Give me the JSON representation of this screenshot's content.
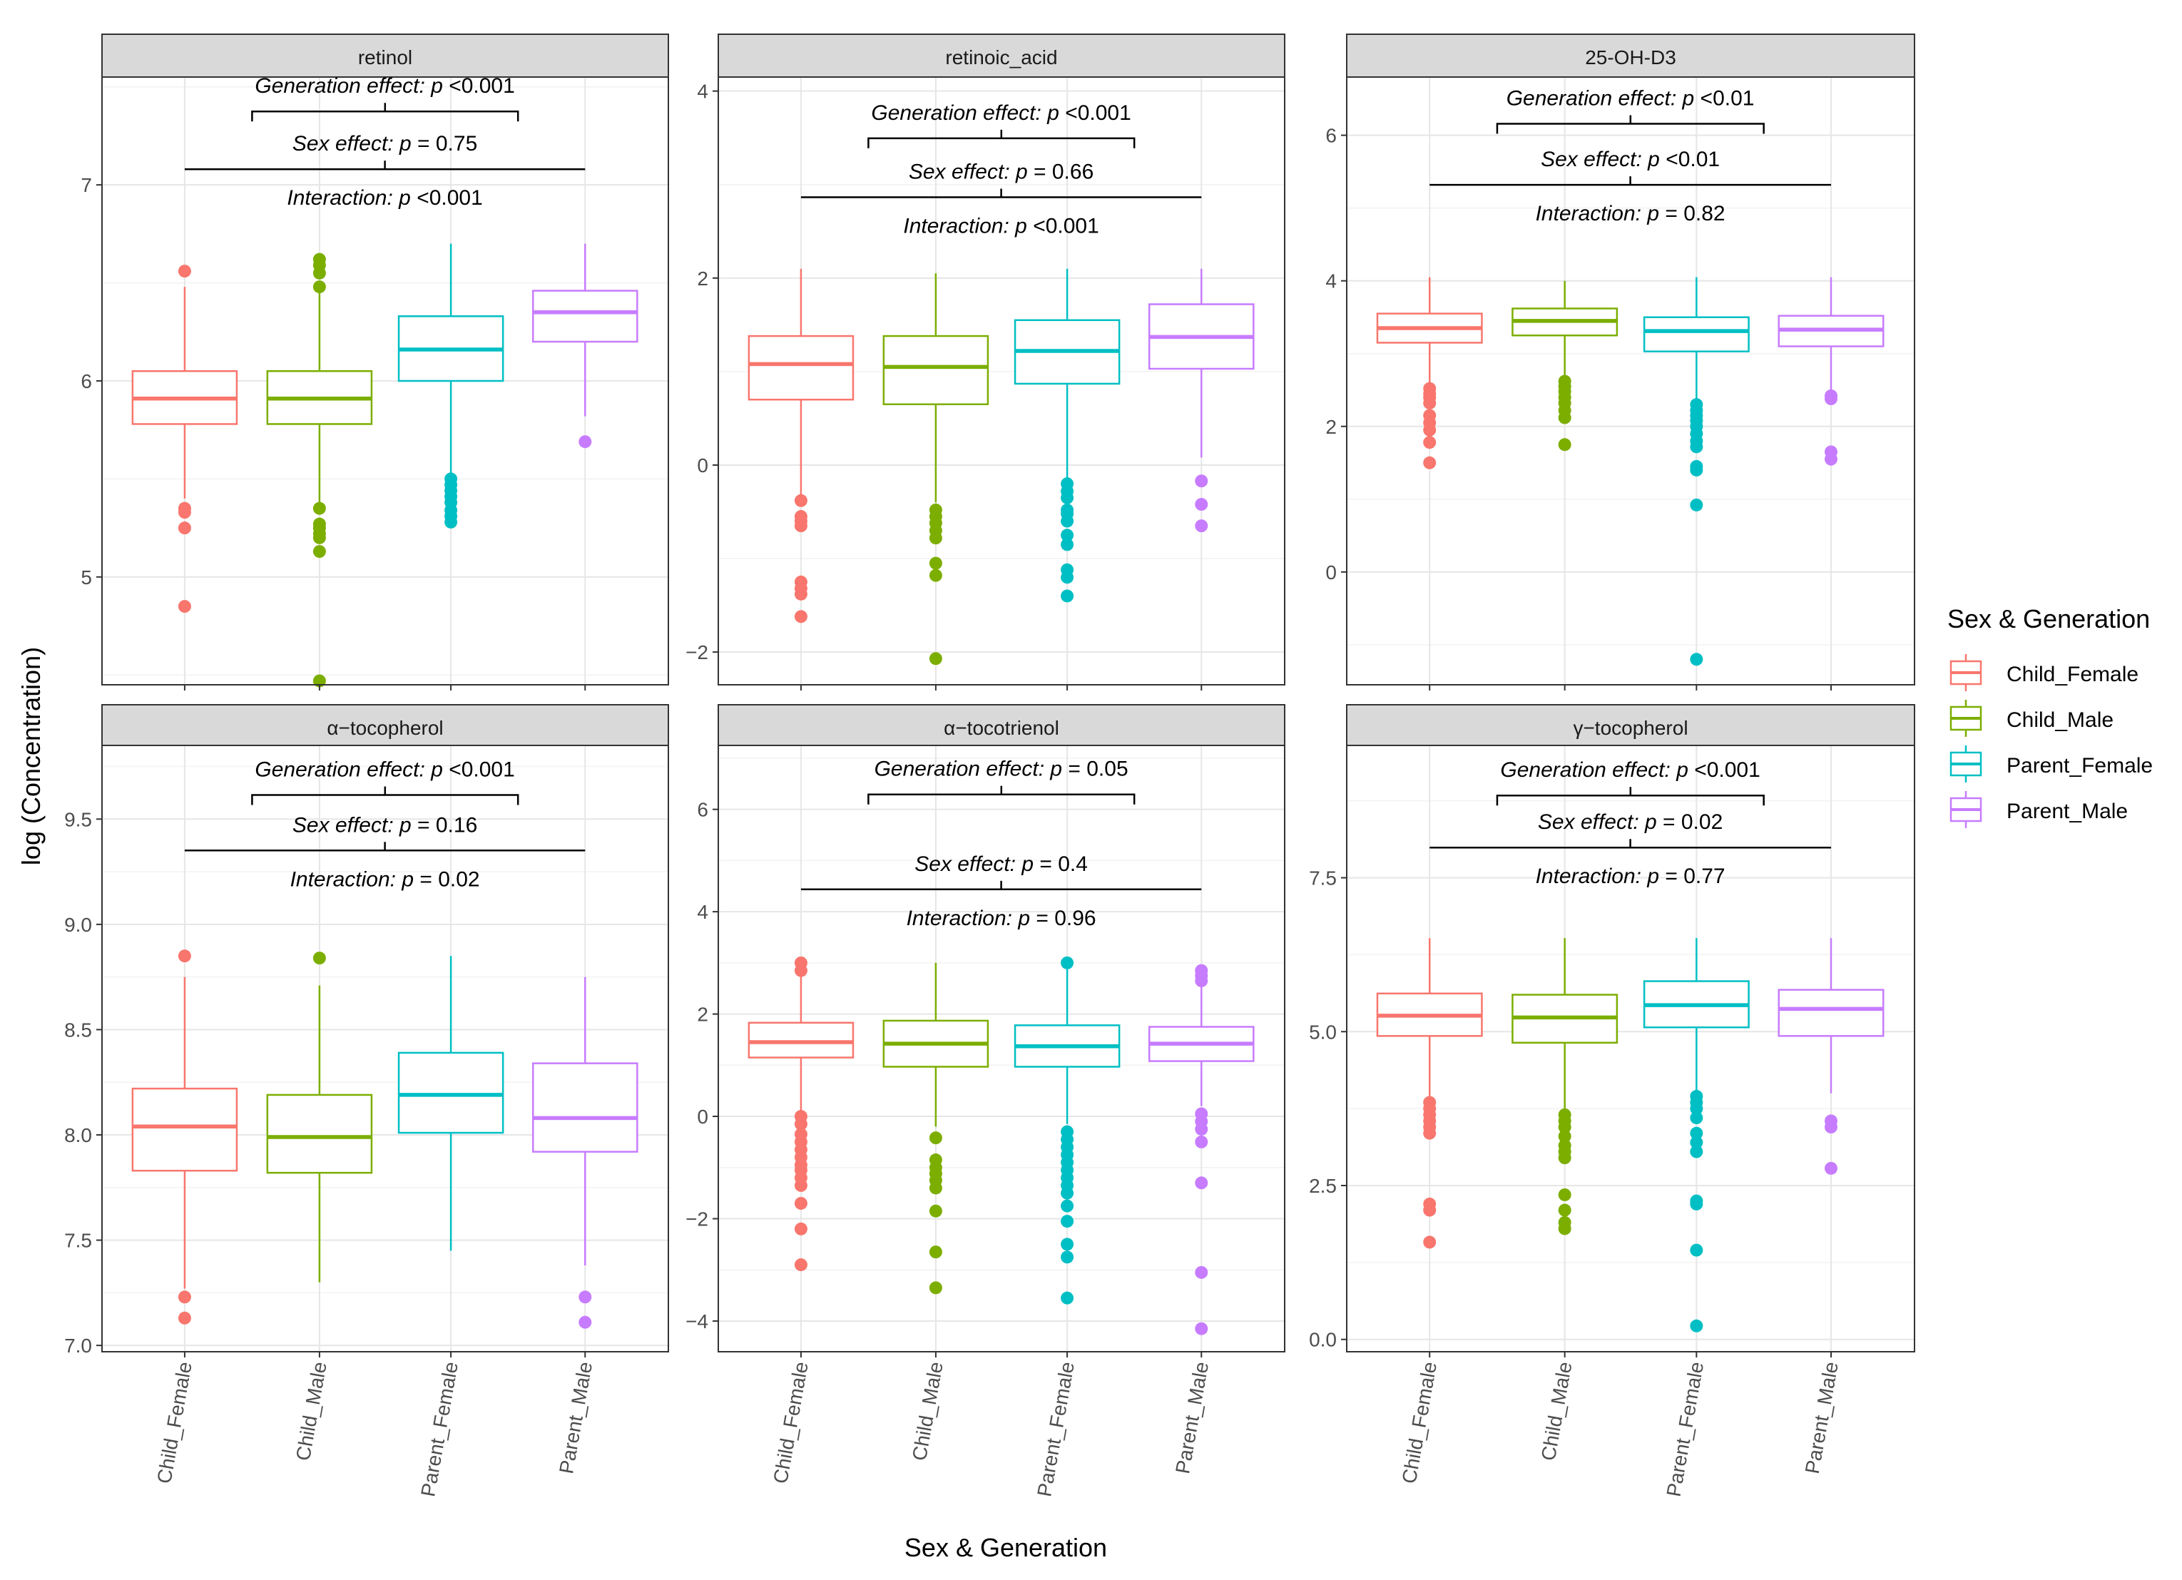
{
  "figure": {
    "ylabel": "log (Concentration)",
    "xlabel": "Sex & Generation",
    "legend_title": "Sex & Generation",
    "legend_position": "right",
    "groups": [
      "Child_Female",
      "Child_Male",
      "Parent_Female",
      "Parent_Male"
    ],
    "colors": {
      "Child_Female": "#F8766D",
      "Child_Male": "#7CAE00",
      "Parent_Female": "#00BFC4",
      "Parent_Male": "#C77CFF"
    },
    "annotation_words": {
      "generation": "Generation effect:",
      "sex": "Sex effect:",
      "interaction": "Interaction:",
      "p": "p"
    }
  },
  "chart_data": [
    {
      "type": "box",
      "title": "retinol",
      "ylim": [
        4.45,
        7.55
      ],
      "yticks": [
        5,
        6,
        7
      ],
      "tick_labels": [
        "5",
        "6",
        "7"
      ],
      "annotations": {
        "generation": " <0.001",
        "sex": " = 0.75",
        "interaction": " <0.001"
      },
      "annot_y": [
        7.52,
        7.24,
        6.92
      ],
      "boxes": [
        {
          "group": "Child_Female",
          "q1": 5.78,
          "median": 5.91,
          "q3": 6.05,
          "wlo": 5.4,
          "whi": 6.48,
          "outliers": [
            6.56,
            5.35,
            5.33,
            5.25,
            4.85
          ]
        },
        {
          "group": "Child_Male",
          "q1": 5.78,
          "median": 5.91,
          "q3": 6.05,
          "wlo": 5.38,
          "whi": 6.45,
          "outliers": [
            6.62,
            6.59,
            6.55,
            6.48,
            5.35,
            5.27,
            5.25,
            5.22,
            5.2,
            5.13,
            4.47
          ]
        },
        {
          "group": "Parent_Female",
          "q1": 6.0,
          "median": 6.16,
          "q3": 6.33,
          "wlo": 5.52,
          "whi": 6.7,
          "outliers": [
            5.5,
            5.47,
            5.44,
            5.41,
            5.38,
            5.34,
            5.31,
            5.28
          ]
        },
        {
          "group": "Parent_Male",
          "q1": 6.2,
          "median": 6.35,
          "q3": 6.46,
          "wlo": 5.82,
          "whi": 6.7,
          "outliers": [
            5.69
          ]
        }
      ]
    },
    {
      "type": "box",
      "title": "retinoic_acid",
      "ylim": [
        -2.35,
        4.15
      ],
      "yticks": [
        -2,
        0,
        2,
        4
      ],
      "tick_labels": [
        "−2",
        "0",
        "2",
        "4"
      ],
      "annotations": {
        "generation": " <0.001",
        "sex": " = 0.66",
        "interaction": " <0.001"
      },
      "annot_y": [
        3.8,
        3.2,
        2.64
      ],
      "boxes": [
        {
          "group": "Child_Female",
          "q1": 0.7,
          "median": 1.08,
          "q3": 1.38,
          "wlo": -0.32,
          "whi": 2.1,
          "outliers": [
            -0.38,
            -0.55,
            -0.6,
            -0.65,
            -1.25,
            -1.32,
            -1.38,
            -1.62
          ]
        },
        {
          "group": "Child_Male",
          "q1": 0.65,
          "median": 1.05,
          "q3": 1.38,
          "wlo": -0.4,
          "whi": 2.05,
          "outliers": [
            -0.48,
            -0.55,
            -0.62,
            -0.7,
            -0.78,
            -1.05,
            -1.18,
            -2.07
          ]
        },
        {
          "group": "Parent_Female",
          "q1": 0.87,
          "median": 1.22,
          "q3": 1.55,
          "wlo": -0.15,
          "whi": 2.1,
          "outliers": [
            -0.2,
            -0.28,
            -0.35,
            -0.48,
            -0.52,
            -0.6,
            -0.75,
            -0.85,
            -1.12,
            -1.2,
            -1.4
          ]
        },
        {
          "group": "Parent_Male",
          "q1": 1.03,
          "median": 1.37,
          "q3": 1.72,
          "wlo": 0.08,
          "whi": 2.1,
          "outliers": [
            -0.17,
            -0.42,
            -0.65
          ]
        }
      ]
    },
    {
      "type": "box",
      "title": "25-OH-D3",
      "ylim": [
        -1.55,
        6.8
      ],
      "yticks": [
        0,
        2,
        4,
        6
      ],
      "tick_labels": [
        "0",
        "2",
        "4",
        "6"
      ],
      "annotations": {
        "generation": " <0.01",
        "sex": " <0.01",
        "interaction": " = 0.82"
      },
      "annot_y": [
        6.55,
        5.75,
        4.9
      ],
      "boxes": [
        {
          "group": "Child_Female",
          "q1": 3.15,
          "median": 3.35,
          "q3": 3.55,
          "wlo": 2.55,
          "whi": 4.05,
          "outliers": [
            2.52,
            2.45,
            2.4,
            2.32,
            2.15,
            2.05,
            1.95,
            1.78,
            1.5
          ]
        },
        {
          "group": "Child_Male",
          "q1": 3.25,
          "median": 3.45,
          "q3": 3.62,
          "wlo": 2.68,
          "whi": 4.0,
          "outliers": [
            2.62,
            2.55,
            2.48,
            2.4,
            2.32,
            2.22,
            2.12,
            1.75
          ]
        },
        {
          "group": "Parent_Female",
          "q1": 3.03,
          "median": 3.31,
          "q3": 3.5,
          "wlo": 2.35,
          "whi": 4.05,
          "outliers": [
            2.3,
            2.22,
            2.15,
            2.08,
            2.0,
            1.9,
            1.8,
            1.72,
            1.45,
            1.4,
            0.92,
            -1.2
          ]
        },
        {
          "group": "Parent_Male",
          "q1": 3.1,
          "median": 3.33,
          "q3": 3.52,
          "wlo": 2.5,
          "whi": 4.05,
          "outliers": [
            2.42,
            2.38,
            1.65,
            1.55
          ]
        }
      ]
    },
    {
      "type": "box",
      "title": "α−tocopherol",
      "ylim": [
        6.97,
        9.85
      ],
      "yticks": [
        7.0,
        7.5,
        8.0,
        8.5,
        9.0,
        9.5
      ],
      "tick_labels": [
        "7.0",
        "7.5",
        "8.0",
        "8.5",
        "9.0",
        "9.5"
      ],
      "annotations": {
        "generation": " <0.001",
        "sex": " = 0.16",
        "interaction": " = 0.02"
      },
      "annot_y": [
        9.75,
        9.5,
        9.23
      ],
      "boxes": [
        {
          "group": "Child_Female",
          "q1": 7.83,
          "median": 8.04,
          "q3": 8.22,
          "wlo": 7.27,
          "whi": 8.75,
          "outliers": [
            8.85,
            7.23,
            7.13
          ]
        },
        {
          "group": "Child_Male",
          "q1": 7.82,
          "median": 7.99,
          "q3": 8.19,
          "wlo": 7.3,
          "whi": 8.71,
          "outliers": [
            8.84
          ]
        },
        {
          "group": "Parent_Female",
          "q1": 8.01,
          "median": 8.19,
          "q3": 8.39,
          "wlo": 7.45,
          "whi": 8.85,
          "outliers": []
        },
        {
          "group": "Parent_Male",
          "q1": 7.92,
          "median": 8.08,
          "q3": 8.34,
          "wlo": 7.38,
          "whi": 8.75,
          "outliers": [
            7.23,
            7.11
          ]
        }
      ]
    },
    {
      "type": "box",
      "title": "α−tocotrienol",
      "ylim": [
        -4.6,
        7.25
      ],
      "yticks": [
        -4,
        -2,
        0,
        2,
        4,
        6
      ],
      "tick_labels": [
        "−4",
        "−2",
        "0",
        "2",
        "4",
        "6"
      ],
      "annotations": {
        "generation": " = 0.05",
        "sex": " = 0.4",
        "interaction": " = 0.96"
      },
      "annot_y": [
        6.85,
        5.05,
        3.35
      ],
      "boxes": [
        {
          "group": "Child_Female",
          "q1": 1.15,
          "median": 1.45,
          "q3": 1.83,
          "wlo": 0.1,
          "whi": 2.95,
          "outliers": [
            3.0,
            2.85,
            0.0,
            -0.15,
            -0.35,
            -0.5,
            -0.65,
            -0.8,
            -0.95,
            -1.05,
            -1.2,
            -1.35,
            -1.7,
            -2.2,
            -2.9
          ]
        },
        {
          "group": "Child_Male",
          "q1": 0.97,
          "median": 1.42,
          "q3": 1.87,
          "wlo": -0.2,
          "whi": 3.0,
          "outliers": [
            -0.42,
            -0.85,
            -1.0,
            -1.12,
            -1.25,
            -1.4,
            -1.85,
            -2.65,
            -3.35
          ]
        },
        {
          "group": "Parent_Female",
          "q1": 0.97,
          "median": 1.37,
          "q3": 1.78,
          "wlo": -0.15,
          "whi": 3.0,
          "outliers": [
            3.0,
            -0.3,
            -0.45,
            -0.6,
            -0.75,
            -0.9,
            -1.05,
            -1.2,
            -1.35,
            -1.5,
            -1.75,
            -2.05,
            -2.5,
            -2.75,
            -3.55
          ]
        },
        {
          "group": "Parent_Male",
          "q1": 1.08,
          "median": 1.42,
          "q3": 1.75,
          "wlo": 0.2,
          "whi": 2.55,
          "outliers": [
            2.85,
            2.75,
            2.65,
            0.05,
            -0.1,
            -0.25,
            -0.5,
            -1.3,
            -3.05,
            -4.15
          ]
        }
      ]
    },
    {
      "type": "box",
      "title": "γ−tocopherol",
      "ylim": [
        -0.2,
        9.65
      ],
      "yticks": [
        0.0,
        2.5,
        5.0,
        7.5
      ],
      "tick_labels": [
        "0.0",
        "2.5",
        "5.0",
        "7.5"
      ],
      "annotations": {
        "generation": " <0.001",
        "sex": " = 0.02",
        "interaction": " = 0.77"
      },
      "annot_y": [
        9.3,
        8.5,
        7.7
      ],
      "boxes": [
        {
          "group": "Child_Female",
          "q1": 4.93,
          "median": 5.26,
          "q3": 5.62,
          "wlo": 3.95,
          "whi": 6.52,
          "outliers": [
            3.85,
            3.75,
            3.65,
            3.55,
            3.45,
            3.35,
            2.2,
            2.1,
            1.58
          ]
        },
        {
          "group": "Child_Male",
          "q1": 4.82,
          "median": 5.23,
          "q3": 5.6,
          "wlo": 3.75,
          "whi": 6.52,
          "outliers": [
            3.65,
            3.55,
            3.45,
            3.3,
            3.15,
            3.05,
            2.95,
            2.35,
            2.1,
            1.9,
            1.8
          ]
        },
        {
          "group": "Parent_Female",
          "q1": 5.07,
          "median": 5.43,
          "q3": 5.82,
          "wlo": 4.05,
          "whi": 6.52,
          "outliers": [
            3.95,
            3.85,
            3.75,
            3.6,
            3.35,
            3.2,
            3.05,
            2.25,
            2.2,
            1.45,
            0.22
          ]
        },
        {
          "group": "Parent_Male",
          "q1": 4.93,
          "median": 5.37,
          "q3": 5.68,
          "wlo": 4.0,
          "whi": 6.52,
          "outliers": [
            3.55,
            3.45,
            2.78
          ]
        }
      ]
    }
  ]
}
